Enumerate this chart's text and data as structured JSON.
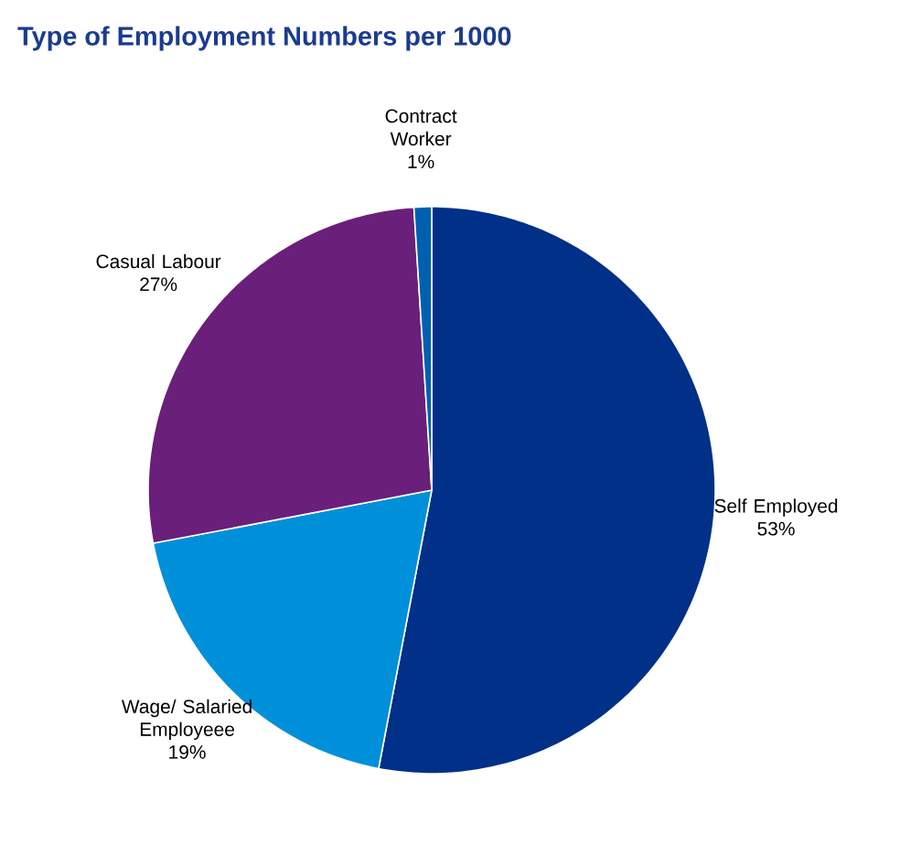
{
  "chart_data": {
    "type": "pie",
    "title": "Type of Employment Numbers per 1000",
    "categories": [
      "Self Employed",
      "Wage/ Salaried Employeee",
      "Casual Labour",
      "Contract Worker"
    ],
    "values": [
      53,
      19,
      27,
      1
    ],
    "value_labels": [
      "53%",
      "19%",
      "27%",
      "1%"
    ],
    "colors": [
      "#003087",
      "#0090da",
      "#6a1f7a",
      "#0060b0"
    ]
  }
}
